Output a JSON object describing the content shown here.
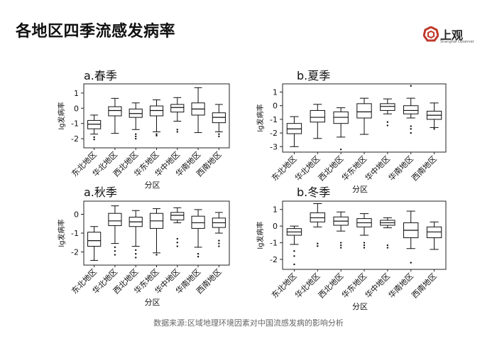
{
  "page": {
    "title": "各地区四季流感发病率",
    "source": "数据来源:区域地理环境因素对中国流感发病的影响分析"
  },
  "logo": {
    "main": "上观",
    "sub": "Shanghai Observer",
    "color": "#c0392b"
  },
  "colors": {
    "box_stroke": "#111111",
    "frame": "#222222",
    "text": "#111111"
  },
  "chart_data": [
    {
      "type": "box",
      "title": "a.春季",
      "xlabel": "分区",
      "ylabel": "lg发病率",
      "categories": [
        "东北地区",
        "华北地区",
        "西北地区",
        "华东地区",
        "华中地区",
        "华南地区",
        "西南地区"
      ],
      "ylim": [
        -2.6,
        1.6
      ],
      "yticks": [
        -2,
        -1,
        0,
        1
      ],
      "boxes": [
        {
          "min": -1.7,
          "q1": -1.35,
          "median": -1.05,
          "q3": -0.8,
          "max": -0.45,
          "outliers": [
            -1.9,
            -2.05
          ]
        },
        {
          "min": -1.65,
          "q1": -0.5,
          "median": -0.15,
          "q3": 0.1,
          "max": 0.65,
          "outliers": []
        },
        {
          "min": -1.4,
          "q1": -0.6,
          "median": -0.35,
          "q3": -0.05,
          "max": 0.35,
          "outliers": [
            -1.7,
            -1.85,
            -2.0
          ]
        },
        {
          "min": -1.55,
          "q1": -0.5,
          "median": -0.15,
          "q3": 0.15,
          "max": 0.55,
          "outliers": [
            -1.7,
            -1.8
          ]
        },
        {
          "min": -0.85,
          "q1": -0.25,
          "median": 0.05,
          "q3": 0.25,
          "max": 0.7,
          "outliers": [
            -1.4,
            -1.55
          ]
        },
        {
          "min": -1.6,
          "q1": -0.45,
          "median": -0.05,
          "q3": 0.35,
          "max": 1.35,
          "outliers": []
        },
        {
          "min": -1.55,
          "q1": -0.95,
          "median": -0.6,
          "q3": -0.3,
          "max": 0.25,
          "outliers": [
            -1.7,
            -1.85
          ]
        }
      ]
    },
    {
      "type": "box",
      "title": "b.夏季",
      "xlabel": "分区",
      "ylabel": "lg发病率",
      "categories": [
        "东北地区",
        "华北地区",
        "西北地区",
        "华东地区",
        "华中地区",
        "华南地区",
        "西南地区"
      ],
      "ylim": [
        -3.4,
        1.6
      ],
      "yticks": [
        -3,
        -2,
        -1,
        0,
        1
      ],
      "boxes": [
        {
          "min": -3.0,
          "q1": -2.05,
          "median": -1.7,
          "q3": -1.3,
          "max": -0.8,
          "outliers": []
        },
        {
          "min": -2.4,
          "q1": -1.2,
          "median": -0.85,
          "q3": -0.35,
          "max": 0.1,
          "outliers": []
        },
        {
          "min": -2.3,
          "q1": -1.3,
          "median": -0.85,
          "q3": -0.45,
          "max": -0.15,
          "outliers": [
            -3.2
          ]
        },
        {
          "min": -2.1,
          "q1": -0.9,
          "median": -0.45,
          "q3": 0.15,
          "max": 0.55,
          "outliers": []
        },
        {
          "min": -0.6,
          "q1": -0.35,
          "median": -0.05,
          "q3": 0.15,
          "max": 0.5,
          "outliers": [
            -1.2,
            -1.45
          ]
        },
        {
          "min": -0.9,
          "q1": -0.6,
          "median": -0.35,
          "q3": 0.0,
          "max": 0.55,
          "outliers": [
            -1.5,
            -1.7,
            -2.0,
            1.45
          ]
        },
        {
          "min": -1.6,
          "q1": -1.0,
          "median": -0.7,
          "q3": -0.4,
          "max": 0.2,
          "outliers": [
            -1.7
          ]
        }
      ]
    },
    {
      "type": "box",
      "title": "a.秋季",
      "xlabel": "分区",
      "ylabel": "lg发病率",
      "categories": [
        "东北地区",
        "华北地区",
        "西北地区",
        "华东地区",
        "华中地区",
        "华南地区",
        "西南地区"
      ],
      "ylim": [
        -2.7,
        0.7
      ],
      "yticks": [
        -2,
        -1,
        0
      ],
      "boxes": [
        {
          "min": -2.45,
          "q1": -1.7,
          "median": -1.4,
          "q3": -0.95,
          "max": -0.65,
          "outliers": []
        },
        {
          "min": -1.55,
          "q1": -0.6,
          "median": -0.35,
          "q3": 0.05,
          "max": 0.45,
          "outliers": [
            -1.75,
            -1.95,
            -2.15
          ]
        },
        {
          "min": -1.7,
          "q1": -0.65,
          "median": -0.4,
          "q3": -0.15,
          "max": 0.2,
          "outliers": [
            -1.9,
            -2.1,
            -2.3
          ]
        },
        {
          "min": -2.05,
          "q1": -0.75,
          "median": -0.35,
          "q3": 0.05,
          "max": 0.3,
          "outliers": [
            -2.15
          ]
        },
        {
          "min": -0.45,
          "q1": -0.3,
          "median": -0.05,
          "q3": 0.1,
          "max": 0.35,
          "outliers": [
            -1.3,
            -1.5,
            -1.7
          ]
        },
        {
          "min": -1.75,
          "q1": -0.75,
          "median": -0.45,
          "q3": -0.1,
          "max": 0.25,
          "outliers": [
            -2.1,
            -2.25
          ]
        },
        {
          "min": -1.0,
          "q1": -0.7,
          "median": -0.45,
          "q3": -0.2,
          "max": 0.1,
          "outliers": [
            -1.4,
            -1.55,
            -1.7
          ]
        }
      ]
    },
    {
      "type": "box",
      "title": "b.冬季",
      "xlabel": "分区",
      "ylabel": "lg发病率",
      "categories": [
        "东北地区",
        "华北地区",
        "西北地区",
        "华东地区",
        "华中地区",
        "华南地区",
        "西南地区"
      ],
      "ylim": [
        -2.6,
        1.5
      ],
      "yticks": [
        -2,
        -1,
        0,
        1
      ],
      "boxes": [
        {
          "min": -1.1,
          "q1": -0.55,
          "median": -0.35,
          "q3": -0.15,
          "max": 0.0,
          "outliers": [
            -1.5,
            -1.8,
            -2.3
          ]
        },
        {
          "min": -0.05,
          "q1": 0.25,
          "median": 0.5,
          "q3": 0.8,
          "max": 1.35,
          "outliers": [
            -1.05,
            -1.2
          ]
        },
        {
          "min": -0.3,
          "q1": 0.05,
          "median": 0.3,
          "q3": 0.55,
          "max": 0.85,
          "outliers": [
            -1.0,
            -1.15,
            -1.3
          ]
        },
        {
          "min": -0.55,
          "q1": -0.05,
          "median": 0.2,
          "q3": 0.45,
          "max": 0.75,
          "outliers": [
            -1.0,
            -1.15,
            -1.3
          ]
        },
        {
          "min": -0.1,
          "q1": 0.05,
          "median": 0.2,
          "q3": 0.35,
          "max": 0.5,
          "outliers": [
            -1.15,
            -1.3
          ]
        },
        {
          "min": -1.35,
          "q1": -0.7,
          "median": -0.25,
          "q3": 0.2,
          "max": 0.9,
          "outliers": [
            -2.2
          ]
        },
        {
          "min": -1.4,
          "q1": -0.7,
          "median": -0.35,
          "q3": -0.05,
          "max": 0.25,
          "outliers": []
        }
      ]
    }
  ]
}
